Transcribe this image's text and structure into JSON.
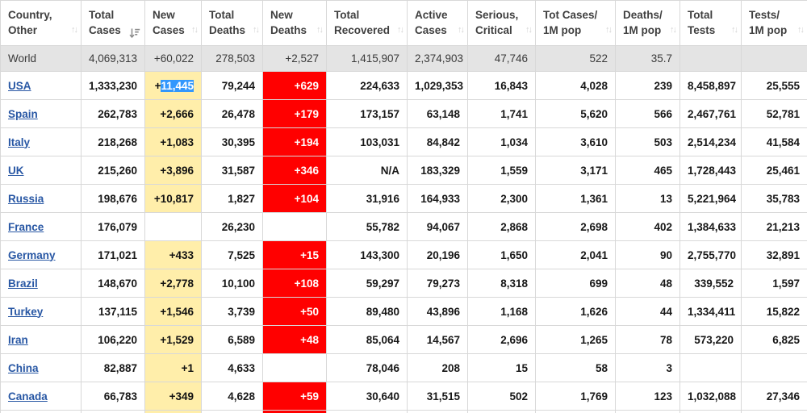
{
  "colors": {
    "new_cases_highlight": "#FFEEAA",
    "new_deaths_highlight": "#FF0000",
    "selection_highlight": "#3297FD",
    "world_row_bg": "#e4e4e4",
    "link_blue": "#2857a4",
    "border": "#d8d8d8"
  },
  "table": {
    "columns": [
      {
        "id": "country",
        "lines": [
          "Country,",
          "Other"
        ],
        "sort": "unsorted"
      },
      {
        "id": "total_cases",
        "lines": [
          "Total",
          "Cases"
        ],
        "sort": "desc"
      },
      {
        "id": "new_cases",
        "lines": [
          "New",
          "Cases"
        ],
        "sort": "unsorted"
      },
      {
        "id": "total_deaths",
        "lines": [
          "Total",
          "Deaths"
        ],
        "sort": "unsorted"
      },
      {
        "id": "new_deaths",
        "lines": [
          "New",
          "Deaths"
        ],
        "sort": "unsorted"
      },
      {
        "id": "total_recovered",
        "lines": [
          "Total",
          "Recovered"
        ],
        "sort": "unsorted"
      },
      {
        "id": "active_cases",
        "lines": [
          "Active",
          "Cases"
        ],
        "sort": "unsorted"
      },
      {
        "id": "serious_critical",
        "lines": [
          "Serious,",
          "Critical"
        ],
        "sort": "unsorted"
      },
      {
        "id": "cases_per_1m",
        "lines": [
          "Tot Cases/",
          "1M pop"
        ],
        "sort": "unsorted"
      },
      {
        "id": "deaths_per_1m",
        "lines": [
          "Deaths/",
          "1M pop"
        ],
        "sort": "unsorted"
      },
      {
        "id": "total_tests",
        "lines": [
          "Total",
          "Tests"
        ],
        "sort": "unsorted"
      },
      {
        "id": "tests_per_1m",
        "lines": [
          "Tests/",
          "1M pop"
        ],
        "sort": "unsorted"
      }
    ],
    "rows": [
      {
        "country": "World",
        "world": true,
        "cells": [
          "4,069,313",
          "+60,022",
          "278,503",
          "+2,527",
          "1,415,907",
          "2,374,903",
          "47,746",
          "522",
          "35.7",
          "",
          ""
        ]
      },
      {
        "country": "USA",
        "world": false,
        "selection": "11,445",
        "cells": [
          "1,333,230",
          "+11,445",
          "79,244",
          "+629",
          "224,633",
          "1,029,353",
          "16,843",
          "4,028",
          "239",
          "8,458,897",
          "25,555"
        ]
      },
      {
        "country": "Spain",
        "world": false,
        "cells": [
          "262,783",
          "+2,666",
          "26,478",
          "+179",
          "173,157",
          "63,148",
          "1,741",
          "5,620",
          "566",
          "2,467,761",
          "52,781"
        ]
      },
      {
        "country": "Italy",
        "world": false,
        "cells": [
          "218,268",
          "+1,083",
          "30,395",
          "+194",
          "103,031",
          "84,842",
          "1,034",
          "3,610",
          "503",
          "2,514,234",
          "41,584"
        ]
      },
      {
        "country": "UK",
        "world": false,
        "cells": [
          "215,260",
          "+3,896",
          "31,587",
          "+346",
          "N/A",
          "183,329",
          "1,559",
          "3,171",
          "465",
          "1,728,443",
          "25,461"
        ]
      },
      {
        "country": "Russia",
        "world": false,
        "cells": [
          "198,676",
          "+10,817",
          "1,827",
          "+104",
          "31,916",
          "164,933",
          "2,300",
          "1,361",
          "13",
          "5,221,964",
          "35,783"
        ]
      },
      {
        "country": "France",
        "world": false,
        "cells": [
          "176,079",
          "",
          "26,230",
          "",
          "55,782",
          "94,067",
          "2,868",
          "2,698",
          "402",
          "1,384,633",
          "21,213"
        ]
      },
      {
        "country": "Germany",
        "world": false,
        "cells": [
          "171,021",
          "+433",
          "7,525",
          "+15",
          "143,300",
          "20,196",
          "1,650",
          "2,041",
          "90",
          "2,755,770",
          "32,891"
        ]
      },
      {
        "country": "Brazil",
        "world": false,
        "cells": [
          "148,670",
          "+2,778",
          "10,100",
          "+108",
          "59,297",
          "79,273",
          "8,318",
          "699",
          "48",
          "339,552",
          "1,597"
        ]
      },
      {
        "country": "Turkey",
        "world": false,
        "cells": [
          "137,115",
          "+1,546",
          "3,739",
          "+50",
          "89,480",
          "43,896",
          "1,168",
          "1,626",
          "44",
          "1,334,411",
          "15,822"
        ]
      },
      {
        "country": "Iran",
        "world": false,
        "cells": [
          "106,220",
          "+1,529",
          "6,589",
          "+48",
          "85,064",
          "14,567",
          "2,696",
          "1,265",
          "78",
          "573,220",
          "6,825"
        ]
      },
      {
        "country": "China",
        "world": false,
        "cells": [
          "82,887",
          "+1",
          "4,633",
          "",
          "78,046",
          "208",
          "15",
          "58",
          "3",
          "",
          ""
        ]
      },
      {
        "country": "Canada",
        "world": false,
        "cells": [
          "66,783",
          "+349",
          "4,628",
          "+59",
          "30,640",
          "31,515",
          "502",
          "1,769",
          "123",
          "1,032,088",
          "27,346"
        ]
      }
    ],
    "partial_row": {
      "highlight_new_cases": true,
      "highlight_new_deaths": true
    }
  }
}
